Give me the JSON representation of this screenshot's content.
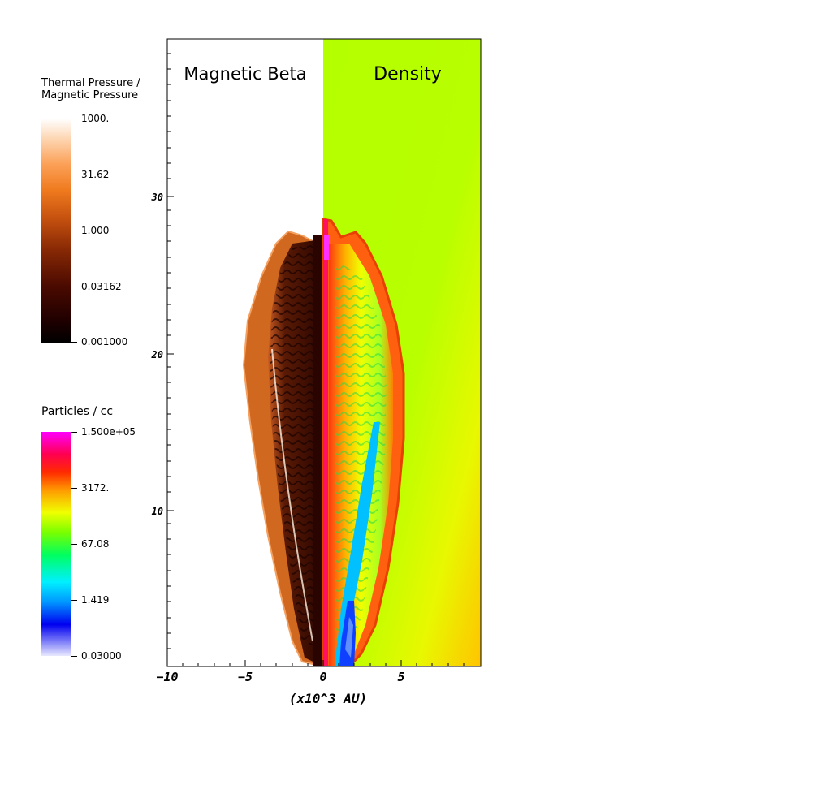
{
  "colorbar_beta": {
    "title_line1": "Thermal Pressure /",
    "title_line2": "Magnetic Pressure",
    "labels": [
      "1000.",
      "31.62",
      "1.000",
      "0.03162",
      "0.001000"
    ]
  },
  "colorbar_density": {
    "title": "Particles / cc",
    "labels": [
      "1.500e+05",
      "3172.",
      "67.08",
      "1.419",
      "0.03000"
    ]
  },
  "panel_left_title": "Magnetic Beta",
  "panel_right_title": "Density",
  "axes": {
    "y_ticks": [
      "30",
      "20",
      "10"
    ],
    "x_ticks": [
      "−10",
      "−5",
      "0",
      "5"
    ],
    "x_label": "(x10^3 AU)"
  }
}
